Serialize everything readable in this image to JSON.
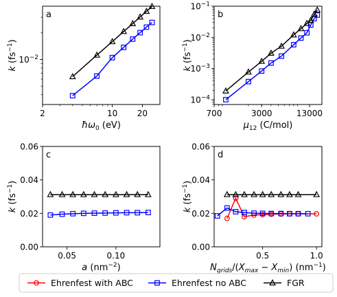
{
  "chart_data": [
    {
      "type": "line",
      "panel": "a",
      "xscale": "log",
      "yscale": "log",
      "xlabel": "ħω₀ (eV)",
      "ylabel": "k (fs⁻¹)",
      "xlim": [
        2,
        30
      ],
      "ylim": [
        0.0031,
        0.04
      ],
      "xticks": [
        {
          "v": 2,
          "label": "2"
        },
        {
          "v": 10,
          "label": "10"
        },
        {
          "v": 20,
          "label": "20"
        }
      ],
      "yticks": [
        {
          "v": 0.01,
          "label": "10⁻²"
        }
      ],
      "series": [
        {
          "name": "Ehrenfest no ABC",
          "color": "#0000ff",
          "marker": "square",
          "x": [
            4,
            7,
            10,
            13,
            16,
            19,
            22,
            25
          ],
          "y": [
            0.0039,
            0.0065,
            0.0105,
            0.0137,
            0.017,
            0.0201,
            0.0232,
            0.0262
          ]
        },
        {
          "name": "FGR",
          "color": "#000000",
          "marker": "triangle",
          "x": [
            4,
            7,
            10,
            13,
            16,
            19,
            22,
            25
          ],
          "y": [
            0.0064,
            0.0112,
            0.0159,
            0.0207,
            0.0254,
            0.0302,
            0.035,
            0.0397
          ]
        }
      ]
    },
    {
      "type": "line",
      "panel": "b",
      "xscale": "log",
      "yscale": "log",
      "xlabel": "μ₁₂ (C/mol)",
      "ylabel": "k (fs⁻¹)",
      "xlim": [
        700,
        19000
      ],
      "ylim": [
        7e-05,
        0.1
      ],
      "xticks": [
        {
          "v": 700,
          "label": "700"
        },
        {
          "v": 3000,
          "label": "3000"
        },
        {
          "v": 13000,
          "label": "13000"
        }
      ],
      "yticks": [
        {
          "v": 0.0001,
          "label": "10⁻⁴"
        },
        {
          "v": 0.001,
          "label": "10⁻³"
        },
        {
          "v": 0.01,
          "label": "10⁻²"
        },
        {
          "v": 0.1,
          "label": "10⁻¹"
        }
      ],
      "series": [
        {
          "name": "Ehrenfest no ABC",
          "color": "#0000ff",
          "marker": "square",
          "x": [
            1000,
            2000,
            3000,
            4000,
            5500,
            8000,
            10000,
            12000,
            13500,
            15000,
            16500
          ],
          "y": [
            0.0001,
            0.00038,
            0.00083,
            0.0015,
            0.0025,
            0.0058,
            0.0095,
            0.014,
            0.025,
            0.04,
            0.052
          ]
        },
        {
          "name": "FGR",
          "color": "#000000",
          "marker": "triangle",
          "x": [
            1000,
            2000,
            3000,
            4000,
            5500,
            8000,
            10000,
            12000,
            13500,
            15000,
            16500
          ],
          "y": [
            0.00019,
            0.00077,
            0.0017,
            0.0031,
            0.0052,
            0.012,
            0.019,
            0.028,
            0.035,
            0.055,
            0.075
          ]
        }
      ]
    },
    {
      "type": "line",
      "panel": "c",
      "xscale": "linear",
      "yscale": "linear",
      "xlabel": "a (nm⁻²)",
      "ylabel": "k (fs⁻¹)",
      "xlim": [
        0.025,
        0.145
      ],
      "ylim": [
        0,
        0.06
      ],
      "xticks": [
        {
          "v": 0.05,
          "label": "0.05"
        },
        {
          "v": 0.1,
          "label": "0.10"
        }
      ],
      "yticks": [
        {
          "v": 0,
          "label": "0.00"
        },
        {
          "v": 0.02,
          "label": "0.02"
        },
        {
          "v": 0.04,
          "label": "0.04"
        },
        {
          "v": 0.06,
          "label": "0.06"
        }
      ],
      "series": [
        {
          "name": "Ehrenfest no ABC",
          "color": "#0000ff",
          "marker": "square",
          "x": [
            0.033,
            0.045,
            0.056,
            0.067,
            0.078,
            0.089,
            0.1,
            0.111,
            0.122,
            0.133
          ],
          "y": [
            0.019,
            0.0195,
            0.0198,
            0.02,
            0.0201,
            0.0202,
            0.0203,
            0.0204,
            0.0204,
            0.0205
          ]
        },
        {
          "name": "FGR",
          "color": "#000000",
          "marker": "triangle",
          "x": [
            0.033,
            0.045,
            0.056,
            0.067,
            0.078,
            0.089,
            0.1,
            0.111,
            0.122,
            0.133
          ],
          "y": [
            0.0312,
            0.0312,
            0.0312,
            0.0312,
            0.0312,
            0.0312,
            0.0312,
            0.0312,
            0.0312,
            0.0312
          ]
        }
      ]
    },
    {
      "type": "line",
      "panel": "d",
      "xscale": "linear",
      "yscale": "linear",
      "xlabel": "N_grids/(X_max − X_min) (nm⁻¹)",
      "ylabel": "k (fs⁻¹)",
      "xlim": [
        0.05,
        1.05
      ],
      "ylim": [
        0,
        0.06
      ],
      "xticks": [
        {
          "v": 0.5,
          "label": "0.5"
        },
        {
          "v": 1.0,
          "label": "1.0"
        }
      ],
      "yticks": [
        {
          "v": 0,
          "label": "0.00"
        },
        {
          "v": 0.02,
          "label": "0.02"
        },
        {
          "v": 0.04,
          "label": "0.04"
        },
        {
          "v": 0.06,
          "label": "0.06"
        }
      ],
      "series": [
        {
          "name": "Ehrenfest with ABC",
          "color": "#ff0000",
          "marker": "circle",
          "x": [
            0.17,
            0.25,
            0.33,
            0.42,
            0.5,
            0.58,
            0.67,
            0.75,
            0.83,
            1.0
          ],
          "y": [
            0.017,
            0.029,
            0.018,
            0.019,
            0.0192,
            0.0195,
            0.0196,
            0.0197,
            0.0197,
            0.0197
          ]
        },
        {
          "name": "Ehrenfest no ABC",
          "color": "#0000ff",
          "marker": "square",
          "x": [
            0.08,
            0.17,
            0.25,
            0.33,
            0.42,
            0.5,
            0.58,
            0.67,
            0.75,
            0.83,
            0.92
          ],
          "y": [
            0.0185,
            0.0232,
            0.021,
            0.0205,
            0.0201,
            0.02,
            0.0199,
            0.0199,
            0.0198,
            0.0198,
            0.0198
          ]
        },
        {
          "name": "FGR",
          "color": "#000000",
          "marker": "triangle",
          "x": [
            0.17,
            0.25,
            0.33,
            0.42,
            0.5,
            0.58,
            0.67,
            0.75,
            0.83,
            1.0
          ],
          "y": [
            0.0312,
            0.0312,
            0.0312,
            0.0312,
            0.0312,
            0.0312,
            0.0312,
            0.0312,
            0.0312,
            0.0312
          ]
        }
      ]
    }
  ],
  "legend": {
    "position": "bottom",
    "entries": [
      {
        "label": "Ehrenfest with ABC",
        "color": "#ff0000",
        "marker": "circle"
      },
      {
        "label": "Ehrenfest no ABC",
        "color": "#0000ff",
        "marker": "square"
      },
      {
        "label": "FGR",
        "color": "#000000",
        "marker": "triangle"
      }
    ]
  }
}
